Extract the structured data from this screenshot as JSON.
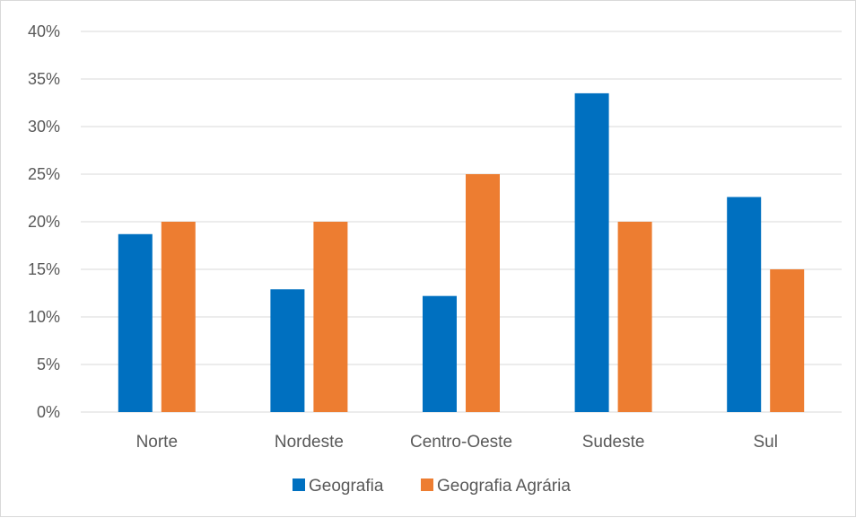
{
  "chart_data": {
    "type": "bar",
    "categories": [
      "Norte",
      "Nordeste",
      "Centro-Oeste",
      "Sudeste",
      "Sul"
    ],
    "series": [
      {
        "name": "Geografia",
        "color": "#0070C0",
        "values": [
          0.187,
          0.129,
          0.122,
          0.335,
          0.226
        ]
      },
      {
        "name": "Geografia Agrária",
        "color": "#ED7D31",
        "values": [
          0.2,
          0.2,
          0.25,
          0.2,
          0.15
        ]
      }
    ],
    "y_ticks": [
      "0%",
      "5%",
      "10%",
      "15%",
      "20%",
      "25%",
      "30%",
      "35%",
      "40%"
    ],
    "ylim": [
      0,
      0.4
    ],
    "grid": true,
    "legend_position": "bottom",
    "gridline_color": "#d9d9d9",
    "text_color": "#595959"
  }
}
